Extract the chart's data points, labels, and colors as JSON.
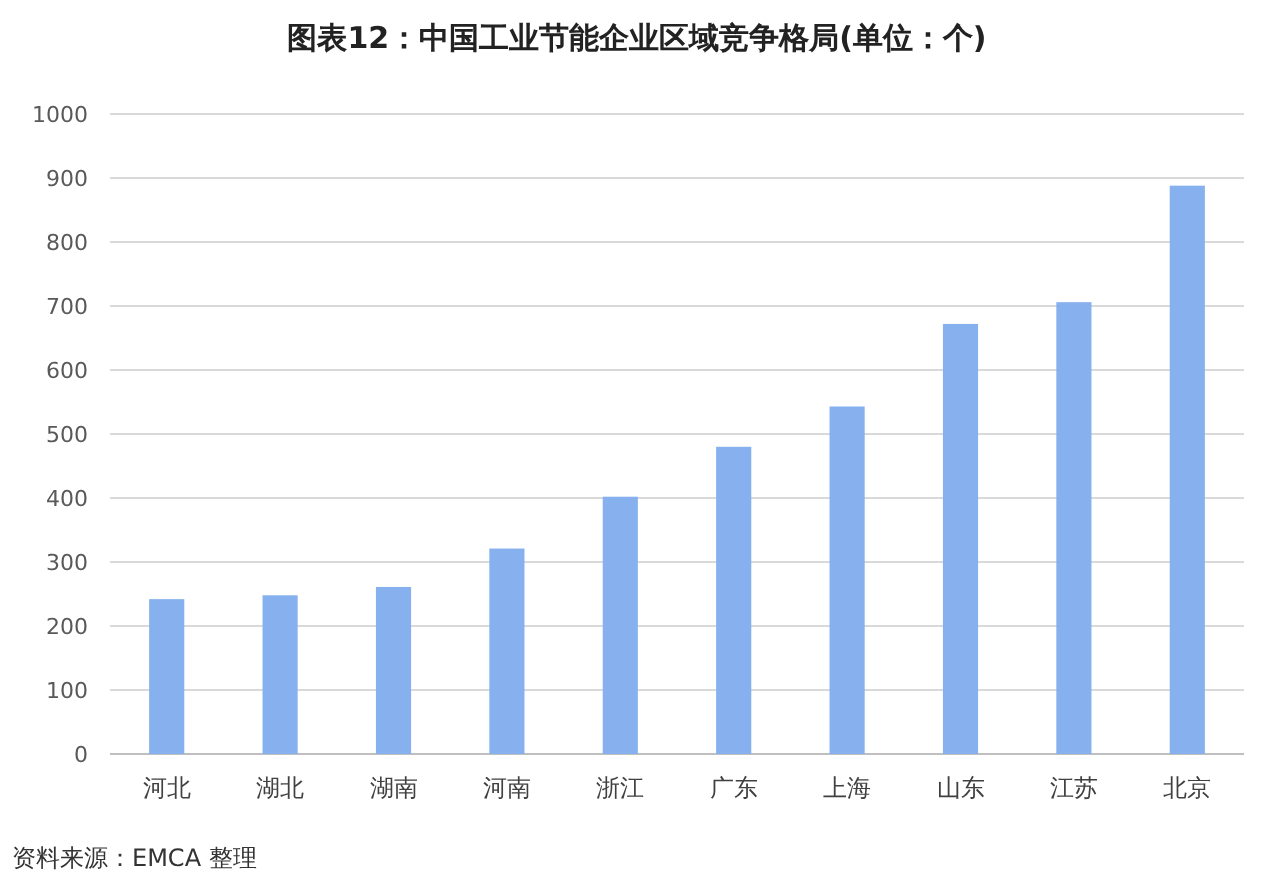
{
  "chart_data": {
    "type": "bar",
    "title": "图表12：中国工业节能企业区域竞争格局(单位：个)",
    "categories": [
      "河北",
      "湖北",
      "湖南",
      "河南",
      "浙江",
      "广东",
      "上海",
      "山东",
      "江苏",
      "北京"
    ],
    "values": [
      242,
      248,
      261,
      321,
      402,
      480,
      543,
      672,
      706,
      888
    ],
    "color": "#86b1ee",
    "ylim": [
      0,
      1000
    ],
    "yticks": [
      0,
      100,
      200,
      300,
      400,
      500,
      600,
      700,
      800,
      900,
      1000
    ],
    "grid": "y",
    "annotations": [
      "资料来源：EMCA 整理"
    ]
  }
}
